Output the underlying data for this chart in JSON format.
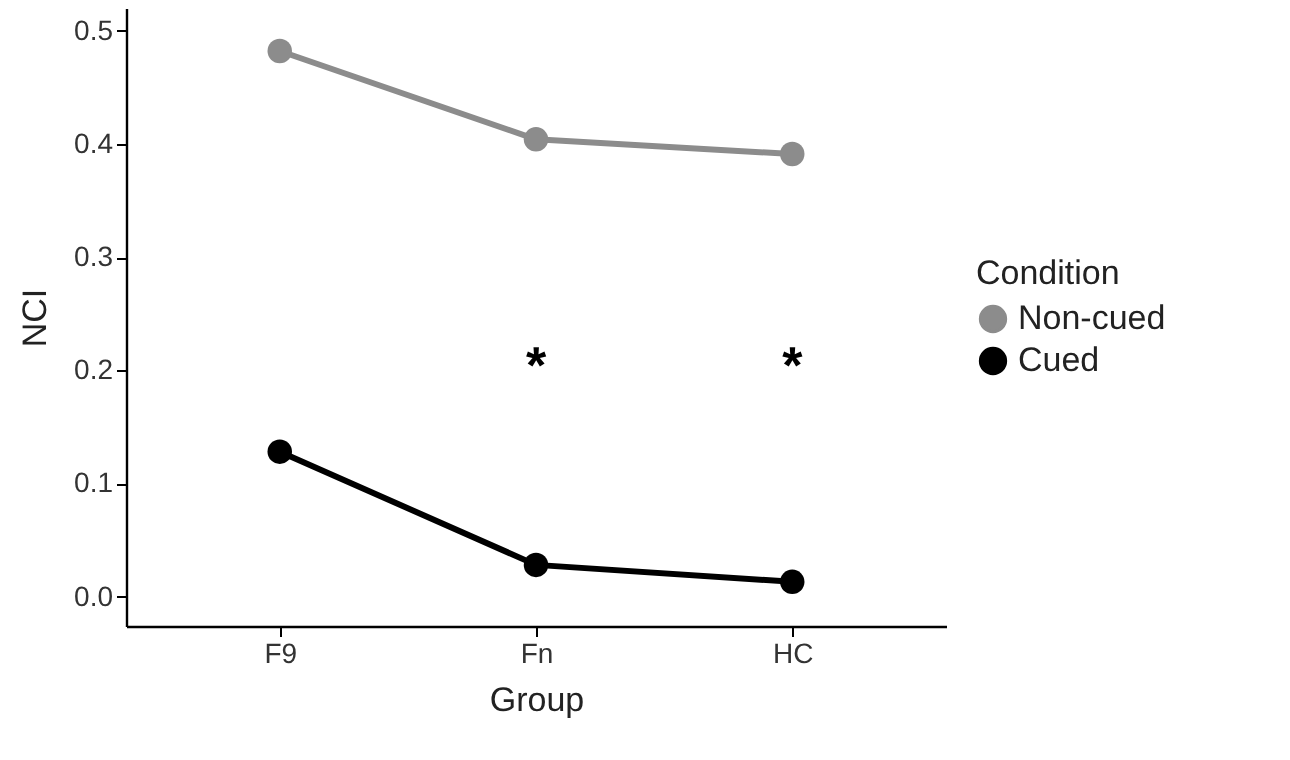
{
  "chart_data": {
    "type": "line",
    "xlabel": "Group",
    "ylabel": "NCI",
    "legend_title": "Condition",
    "categories": [
      "F9",
      "Fn",
      "HC"
    ],
    "series": [
      {
        "name": "Non-cued",
        "color": "#8c8c8c",
        "values": [
          0.482,
          0.404,
          0.391
        ]
      },
      {
        "name": "Cued",
        "color": "#000000",
        "values": [
          0.128,
          0.028,
          0.013
        ]
      }
    ],
    "ylim": [
      -0.026,
      0.52
    ],
    "yticks": [
      {
        "value": 0,
        "label": "0.0"
      },
      0.1,
      0.2,
      0.3,
      0.4,
      0.5
    ],
    "annotations": [
      "*",
      "*"
    ],
    "marker": "circle",
    "line_style": "solid",
    "legend": "right",
    "grid": false
  }
}
